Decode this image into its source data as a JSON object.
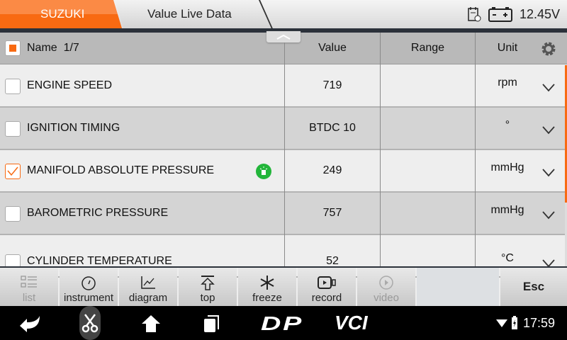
{
  "header": {
    "brand_tab": "SUZUKI",
    "page_tab": "Value Live Data",
    "voltage": "12.45V"
  },
  "table": {
    "name_label": "Name",
    "page": "1/7",
    "columns": [
      "Value",
      "Range",
      "Unit"
    ],
    "rows": [
      {
        "name": "ENGINE SPEED",
        "value": "719",
        "range": "",
        "unit": "rpm",
        "checked": false
      },
      {
        "name": "IGNITION TIMING",
        "value": "BTDC 10",
        "range": "",
        "unit": "°",
        "checked": false
      },
      {
        "name": "MANIFOLD ABSOLUTE PRESSURE",
        "value": "249",
        "range": "",
        "unit": "mmHg",
        "checked": true,
        "badge": "green-indicator-icon"
      },
      {
        "name": "BAROMETRIC PRESSURE",
        "value": "757",
        "range": "",
        "unit": "mmHg",
        "checked": false
      },
      {
        "name": "CYLINDER TEMPERATURE",
        "value": "52",
        "range": "",
        "unit": "°C",
        "checked": false
      }
    ]
  },
  "toolbar": {
    "list": "list",
    "instrument": "instrument",
    "diagram": "diagram",
    "top": "top",
    "freeze": "freeze",
    "record": "record",
    "video": "video",
    "esc": "Esc"
  },
  "navbar": {
    "dp": "DP",
    "vci": "VCI",
    "time": "17:59"
  },
  "colors": {
    "accent": "#f86a12",
    "indicator": "#22b53a"
  }
}
